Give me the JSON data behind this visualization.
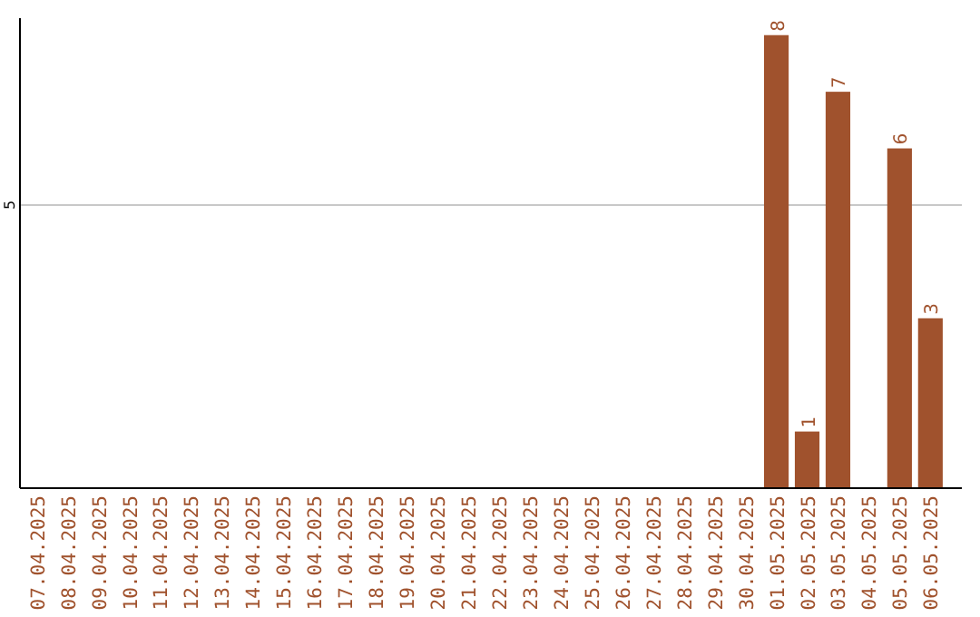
{
  "chart_data": {
    "type": "bar",
    "categories": [
      "07.04.2025",
      "08.04.2025",
      "09.04.2025",
      "10.04.2025",
      "11.04.2025",
      "12.04.2025",
      "13.04.2025",
      "14.04.2025",
      "15.04.2025",
      "16.04.2025",
      "17.04.2025",
      "18.04.2025",
      "19.04.2025",
      "20.04.2025",
      "21.04.2025",
      "22.04.2025",
      "23.04.2025",
      "24.04.2025",
      "25.04.2025",
      "26.04.2025",
      "27.04.2025",
      "28.04.2025",
      "29.04.2025",
      "30.04.2025",
      "01.05.2025",
      "02.05.2025",
      "03.05.2025",
      "04.05.2025",
      "05.05.2025",
      "06.05.2025"
    ],
    "values": [
      null,
      null,
      null,
      null,
      null,
      null,
      null,
      null,
      null,
      null,
      null,
      null,
      null,
      null,
      null,
      null,
      null,
      null,
      null,
      null,
      null,
      null,
      null,
      null,
      8,
      1,
      7,
      null,
      6,
      3
    ],
    "color": "#a0522d",
    "ylim": [
      0,
      8.3
    ],
    "yticks": [
      5
    ],
    "grid": "y",
    "data_labels": true
  }
}
